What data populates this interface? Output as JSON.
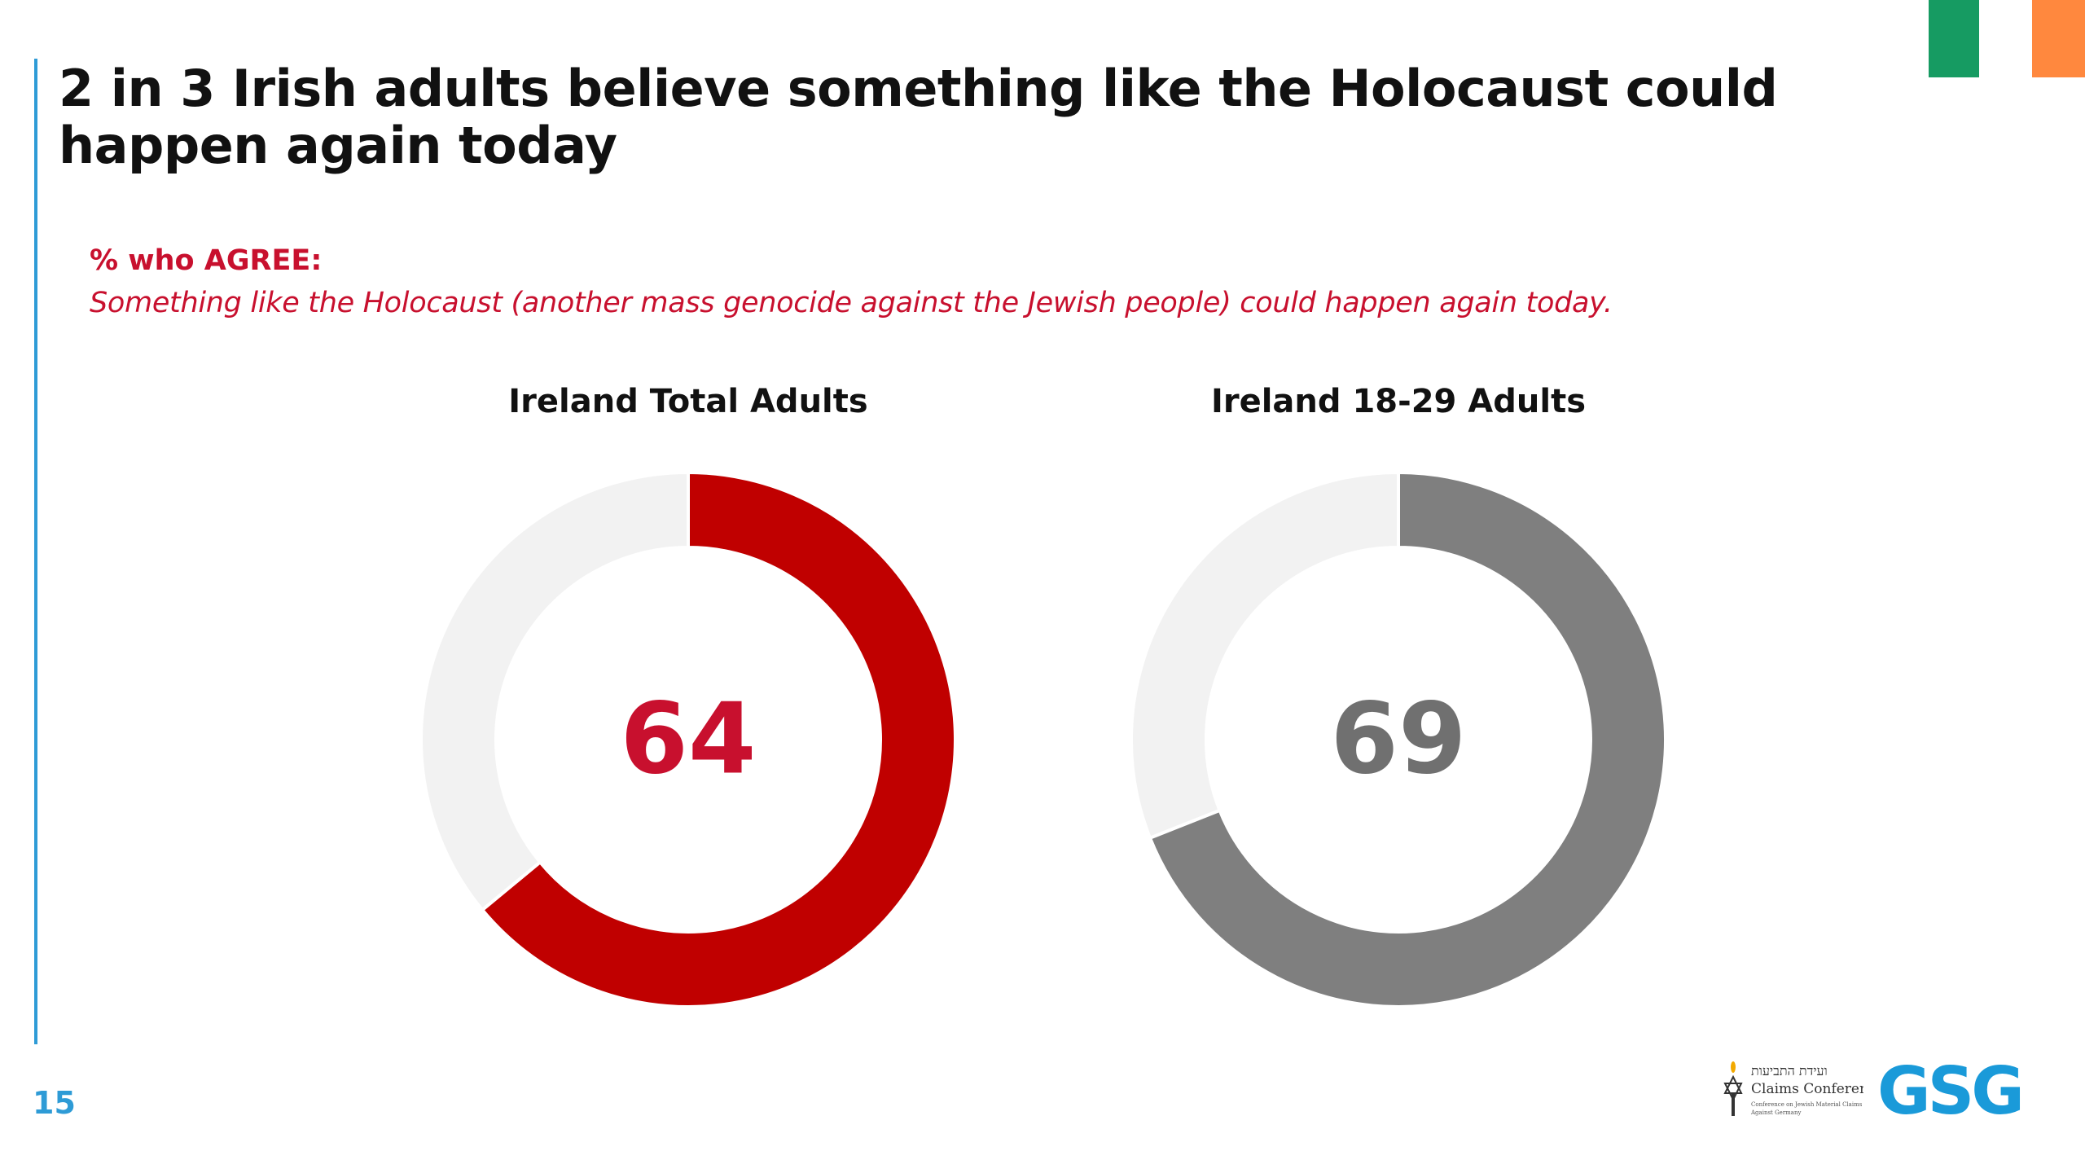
{
  "colors": {
    "accent_red": "#c8102e",
    "donut_red": "#c00000",
    "donut_grey": "#7f7f7f",
    "donut_track": "#f2f2f2",
    "rule_blue": "#2e9bd6",
    "flag_green": "#169b62",
    "flag_orange": "#ff883e",
    "gsg_blue": "#1a9ad9"
  },
  "slide": {
    "title": "2 in 3 Irish adults believe something like the Holocaust could happen again today",
    "agree_label": "% who AGREE:",
    "statement": "Something like the Holocaust (another mass genocide against the Jewish people) could happen again today.",
    "page_number": "15"
  },
  "logos": {
    "claims_hebrew": "ועידת התביעות",
    "claims_name": "Claims Conference",
    "claims_sub1": "Conference on Jewish Material Claims",
    "claims_sub2": "Against Germany",
    "gsg": "GSG"
  },
  "chart_data": [
    {
      "type": "pie",
      "title": "Ireland Total Adults",
      "value": 64,
      "value_label": "64",
      "max": 100,
      "fill_color": "#c00000",
      "label_color": "#c8102e"
    },
    {
      "type": "pie",
      "title": "Ireland 18-29 Adults",
      "value": 69,
      "value_label": "69",
      "max": 100,
      "fill_color": "#7f7f7f",
      "label_color": "#707070"
    }
  ]
}
